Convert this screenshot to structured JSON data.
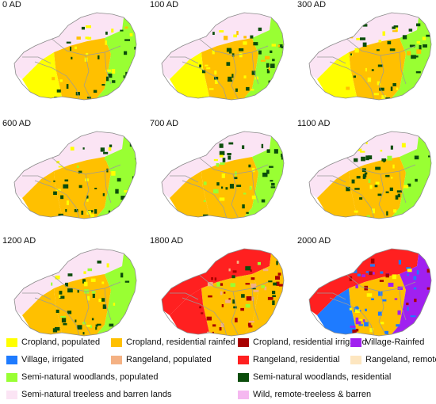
{
  "panels": [
    {
      "label": "0 AD",
      "scheme": "early"
    },
    {
      "label": "100 AD",
      "scheme": "early"
    },
    {
      "label": "300 AD",
      "scheme": "early"
    },
    {
      "label": "600 AD",
      "scheme": "mid"
    },
    {
      "label": "700 AD",
      "scheme": "mid"
    },
    {
      "label": "1100 AD",
      "scheme": "mid"
    },
    {
      "label": "1200 AD",
      "scheme": "mid"
    },
    {
      "label": "1800 AD",
      "scheme": "late"
    },
    {
      "label": "2000 AD",
      "scheme": "modern"
    }
  ],
  "legend": [
    {
      "label": "Cropland, populated",
      "color": "#ffff00"
    },
    {
      "label": "Cropland, residential rainfed",
      "color": "#ffc000"
    },
    {
      "label": "Cropland, residential irrigated",
      "color": "#a80000"
    },
    {
      "label": "Village-Rainfed",
      "color": "#a020f0"
    },
    {
      "label": "Village, irrigated",
      "color": "#1e7bff"
    },
    {
      "label": "Rangeland, populated",
      "color": "#f4b183"
    },
    {
      "label": "Rangeland, residential",
      "color": "#ff2020"
    },
    {
      "label": "Rangeland, remote",
      "color": "#fde6c0"
    },
    {
      "label": "Semi-natural woodlands, populated",
      "color": "#99ff33"
    },
    {
      "label": "Semi-natural woodlands, residential",
      "color": "#0b4d0b"
    },
    {
      "label": "Semi-natural treeless and barren lands",
      "color": "#fbe4f4"
    },
    {
      "label": "Wild, remote-treeless & barren",
      "color": "#f5b8f0"
    }
  ]
}
